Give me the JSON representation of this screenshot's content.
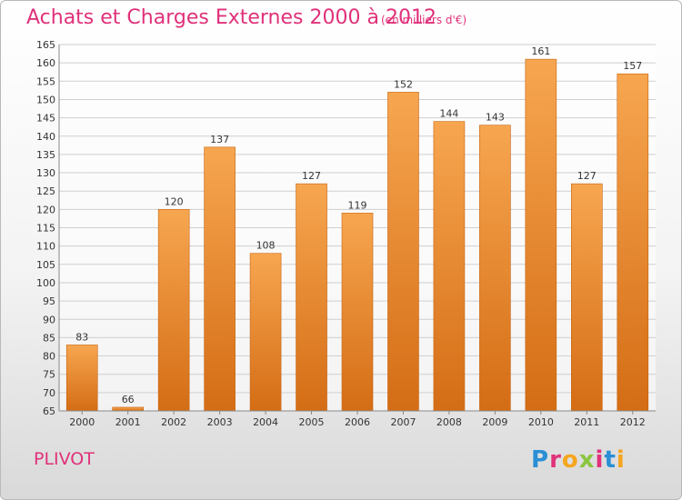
{
  "header": {
    "title": "Achats et Charges Externes 2000 à 2012",
    "subtitle": "(en milliers d'€)"
  },
  "footer": {
    "city": "PLIVOT",
    "logo": "Proxiti",
    "logo_letters": [
      "P",
      "r",
      "o",
      "x",
      "i",
      "t",
      "i"
    ],
    "logo_colors": [
      "#2a8fd6",
      "#e0317a",
      "#f5a51e",
      "#8bc53f",
      "#e0317a",
      "#2a8fd6",
      "#f5a51e"
    ]
  },
  "chart_data": {
    "type": "bar",
    "categories": [
      "2000",
      "2001",
      "2002",
      "2003",
      "2004",
      "2005",
      "2006",
      "2007",
      "2008",
      "2009",
      "2010",
      "2011",
      "2012"
    ],
    "values": [
      83,
      66,
      120,
      137,
      108,
      127,
      119,
      152,
      144,
      143,
      161,
      127,
      157
    ],
    "ylim": [
      65,
      165
    ],
    "yticks": [
      65,
      70,
      75,
      80,
      85,
      90,
      95,
      100,
      105,
      110,
      115,
      120,
      125,
      130,
      135,
      140,
      145,
      150,
      155,
      160,
      165
    ],
    "grid": true,
    "colors": {
      "bar_top": "#f7a650",
      "bar_bottom": "#d46d15",
      "bar_edge": "#c7630f",
      "grid": "#cfcfcf",
      "axis": "#888888",
      "text": "#333333",
      "accent": "#e0317a"
    }
  }
}
